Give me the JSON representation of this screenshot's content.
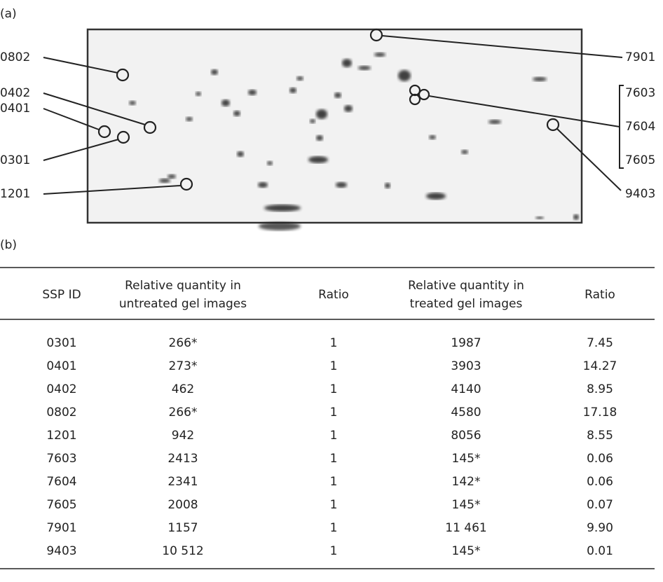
{
  "panel_a": {
    "label": "(a)",
    "left_labels": [
      "0802",
      "0402",
      "0401",
      "0301",
      "1201"
    ],
    "right_labels": [
      "7901",
      "7603",
      "7604",
      "7605",
      "9403"
    ]
  },
  "panel_b": {
    "label": "(b)",
    "table": {
      "headers": [
        [
          "SSP ID"
        ],
        [
          "Relative quantity in",
          "untreated gel images"
        ],
        [
          "Ratio"
        ],
        [
          "Relative quantity in",
          "treated gel images"
        ],
        [
          "Ratio"
        ]
      ],
      "rows": [
        [
          "0301",
          "266*",
          "1",
          "1987",
          "7.45"
        ],
        [
          "0401",
          "273*",
          "1",
          "3903",
          "14.27"
        ],
        [
          "0402",
          "462",
          "1",
          "4140",
          "8.95"
        ],
        [
          "0802",
          "266*",
          "1",
          "4580",
          "17.18"
        ],
        [
          "1201",
          "942",
          "1",
          "8056",
          "8.55"
        ],
        [
          "7603",
          "2413",
          "1",
          "145*",
          "0.06"
        ],
        [
          "7604",
          "2341",
          "1",
          "142*",
          "0.06"
        ],
        [
          "7605",
          "2008",
          "1",
          "145*",
          "0.07"
        ],
        [
          "7901",
          "1157",
          "1",
          "11 461",
          "9.90"
        ],
        [
          "9403",
          "10 512",
          "1",
          "145*",
          "0.01"
        ]
      ]
    }
  }
}
